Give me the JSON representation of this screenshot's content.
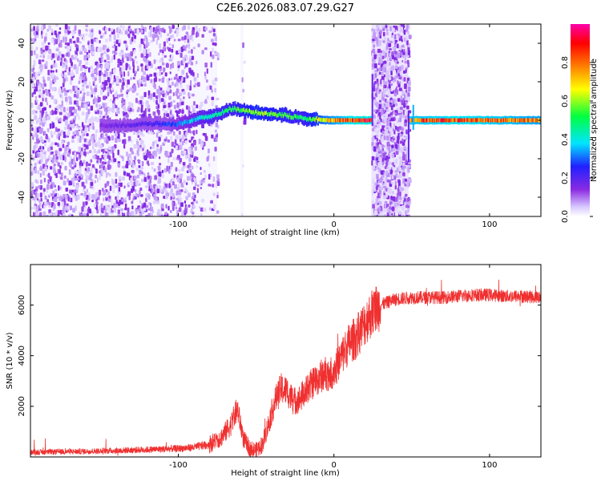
{
  "title": "C2E6.2026.083.07.29.G27",
  "chart_data": [
    {
      "type": "heatmap",
      "title": "C2E6.2026.083.07.29.G27",
      "xlabel": "Height of straight line (km)",
      "ylabel": "Frequency (Hz)",
      "xlim": [
        -195,
        133
      ],
      "ylim": [
        -50,
        50
      ],
      "xticks": [
        -100,
        0,
        100
      ],
      "xtick_labels": [
        "-100",
        "0",
        "100"
      ],
      "yticks": [
        -40,
        -20,
        0,
        20,
        40
      ],
      "ytick_labels": [
        "-40",
        "-20",
        "0",
        "20",
        "40"
      ],
      "colorbar": {
        "label": "Normalized spectral amplitude",
        "range": [
          0,
          1
        ],
        "ticks": [
          0.0,
          0.2,
          0.4,
          0.6,
          0.8
        ],
        "tick_labels": [
          "0.0",
          "0.2",
          "0.4",
          "0.6",
          "0.8"
        ],
        "colormap": [
          "#ffffff",
          "#d8c8ff",
          "#8a2be2",
          "#2020ff",
          "#00e5ff",
          "#00ff40",
          "#ffff00",
          "#ff7f00",
          "#ff0000",
          "#ff00aa"
        ]
      },
      "regions": [
        {
          "x": [
            -195,
            -75
          ],
          "y": [
            -50,
            50
          ],
          "description": "scattered noise",
          "amplitude": 0.1
        },
        {
          "x": [
            -60,
            -58
          ],
          "y": [
            -50,
            50
          ],
          "description": "faint vertical streak",
          "amplitude": 0.05
        },
        {
          "x": [
            24,
            48
          ],
          "y": [
            -50,
            50
          ],
          "description": "broadband noise band",
          "amplitude": 0.15
        }
      ],
      "trace": {
        "description": "Doppler frequency ridge",
        "points": [
          {
            "x": -150,
            "f": -3,
            "amplitude": 0.15
          },
          {
            "x": -120,
            "f": -2,
            "amplitude": 0.2
          },
          {
            "x": -100,
            "f": -2,
            "amplitude": 0.3
          },
          {
            "x": -80,
            "f": 2,
            "amplitude": 0.45
          },
          {
            "x": -65,
            "f": 6,
            "amplitude": 0.5
          },
          {
            "x": -50,
            "f": 4,
            "amplitude": 0.6
          },
          {
            "x": -35,
            "f": 3,
            "amplitude": 0.55
          },
          {
            "x": -20,
            "f": 1,
            "amplitude": 0.5
          },
          {
            "x": -5,
            "f": 0,
            "amplitude": 0.7
          },
          {
            "x": 10,
            "f": 0,
            "amplitude": 0.85
          },
          {
            "x": 20,
            "f": 0,
            "amplitude": 0.9
          },
          {
            "x": 52,
            "f": 0,
            "amplitude": 0.8
          },
          {
            "x": 80,
            "f": 0,
            "amplitude": 0.85
          },
          {
            "x": 110,
            "f": 0,
            "amplitude": 0.8
          },
          {
            "x": 133,
            "f": 0,
            "amplitude": 0.75
          }
        ]
      }
    },
    {
      "type": "line",
      "xlabel": "Height of straight line (km)",
      "ylabel": "SNR (10 * v/v)",
      "xlim": [
        -195,
        133
      ],
      "ylim": [
        0,
        7600
      ],
      "xticks": [
        -100,
        0,
        100
      ],
      "xtick_labels": [
        "-100",
        "0",
        "100"
      ],
      "yticks": [
        2000,
        4000,
        6000
      ],
      "ytick_labels": [
        "2000",
        "4000",
        "6000"
      ],
      "series": [
        {
          "name": "SNR",
          "color": "#f03030",
          "x": [
            -195,
            -180,
            -160,
            -140,
            -120,
            -100,
            -90,
            -80,
            -72,
            -66,
            -62,
            -58,
            -54,
            -50,
            -46,
            -42,
            -38,
            -34,
            -30,
            -26,
            -22,
            -18,
            -14,
            -10,
            -6,
            -2,
            2,
            6,
            10,
            14,
            18,
            22,
            26,
            30,
            34,
            38,
            42,
            50,
            60,
            70,
            80,
            90,
            100,
            110,
            120,
            133
          ],
          "values": [
            180,
            200,
            220,
            250,
            290,
            330,
            380,
            500,
            800,
            1300,
            1900,
            700,
            320,
            260,
            500,
            1300,
            2200,
            2700,
            2600,
            2200,
            2300,
            2600,
            2900,
            3100,
            3300,
            3300,
            3600,
            4100,
            4500,
            4700,
            5100,
            5500,
            5800,
            6000,
            6100,
            6200,
            6250,
            6300,
            6300,
            6300,
            6350,
            6400,
            6400,
            6350,
            6350,
            6300
          ]
        }
      ]
    }
  ]
}
